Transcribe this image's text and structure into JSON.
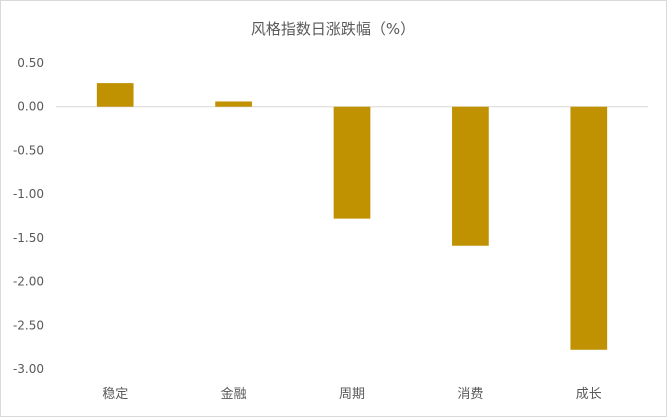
{
  "chart_data": {
    "type": "bar",
    "title": "风格指数日涨跌幅（%）",
    "categories": [
      "稳定",
      "金融",
      "周期",
      "消费",
      "成长"
    ],
    "series": [
      {
        "values": [
          0.27,
          0.06,
          -1.28,
          -1.59,
          -2.78
        ]
      }
    ],
    "ylim": [
      -3.0,
      0.5
    ],
    "yticks": [
      0.5,
      0.0,
      -0.5,
      -1.0,
      -1.5,
      -2.0,
      -2.5,
      -3.0
    ],
    "ytick_labels": [
      "0.50",
      "0.00",
      "-0.50",
      "-1.00",
      "-1.50",
      "-2.00",
      "-2.50",
      "-3.00"
    ],
    "xlabel": "",
    "ylabel": "",
    "grid": false,
    "legend": "none",
    "colors": {
      "bar": "#C09100",
      "zero_line": "#d9d9d9",
      "text": "#595959"
    }
  }
}
